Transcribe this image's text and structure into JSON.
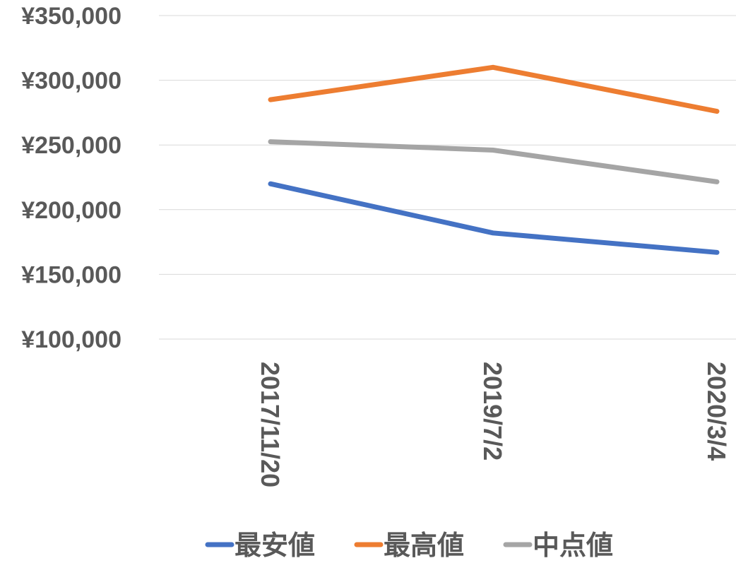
{
  "chart_data": {
    "type": "line",
    "categories": [
      "2017/11/20",
      "2019/7/2",
      "2020/3/4"
    ],
    "series": [
      {
        "name": "最安値",
        "color": "#4472c4",
        "values": [
          220000,
          182000,
          167000
        ]
      },
      {
        "name": "最高値",
        "color": "#ed7d31",
        "values": [
          285000,
          310000,
          276000
        ]
      },
      {
        "name": "中点値",
        "color": "#a5a5a5",
        "values": [
          252500,
          246000,
          221500
        ]
      }
    ],
    "y_ticks": [
      "¥350,000",
      "¥300,000",
      "¥250,000",
      "¥200,000",
      "¥150,000",
      "¥100,000"
    ],
    "ylim": [
      100000,
      350000
    ],
    "y_step": 50000,
    "grid": true,
    "legend": "bottom",
    "title": "",
    "xlabel": "",
    "ylabel": ""
  }
}
